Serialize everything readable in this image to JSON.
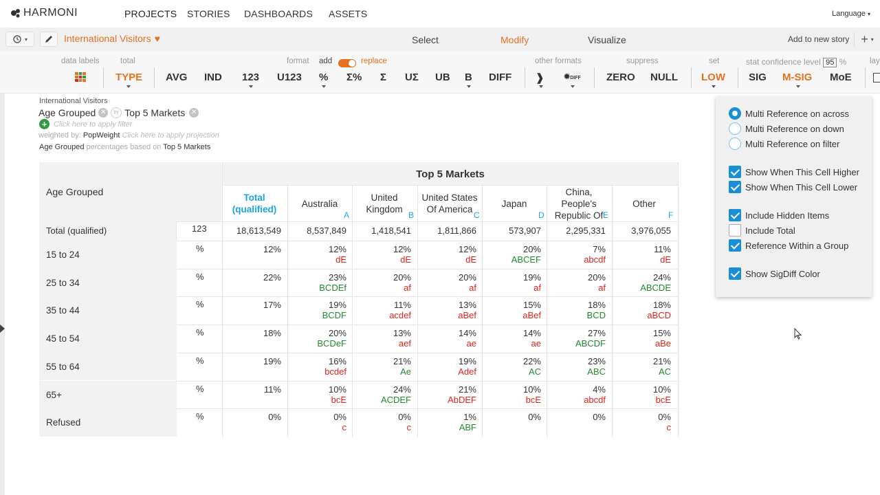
{
  "app": {
    "logo_text": "HARMONI",
    "language": "Language"
  },
  "nav": {
    "items": [
      {
        "label": "PROJECTS",
        "active": true
      },
      {
        "label": "STORIES"
      },
      {
        "label": "DASHBOARDS"
      },
      {
        "label": "ASSETS"
      }
    ]
  },
  "doc": {
    "title": "International Visitors"
  },
  "modes": {
    "select": "Select",
    "modify": "Modify",
    "visualize": "Visualize",
    "active": "Modify"
  },
  "toolbar2": {
    "add_story": "Add to new story"
  },
  "ribbon": {
    "labels": {
      "data_labels": "data labels",
      "total": "total",
      "format": "format",
      "add": "add",
      "replace": "replace",
      "other_formats": "other formats",
      "suppress": "suppress",
      "set": "set",
      "stat_conf": "stat confidence level",
      "conf_value": "95",
      "pct": "%",
      "lay": "lay"
    },
    "buttons": {
      "type": "TYPE",
      "avg": "AVG",
      "ind": "IND",
      "n123": "123",
      "u123": "U123",
      "pct": "%",
      "spct": "Σ%",
      "sigma": "Σ",
      "usigma": "UΣ",
      "ub": "UB",
      "b": "B",
      "diff": "DIFF",
      "zero": "ZERO",
      "null": "NULL",
      "low": "LOW",
      "sig": "SIG",
      "msig": "M-SIG",
      "moe": "MoE"
    }
  },
  "filters": {
    "dataset": "International Visitors",
    "row_var": "Age Grouped",
    "col_var": "Top 5 Markets",
    "by_icon": "by",
    "apply_filter": "Click here to apply filter",
    "weighted_label": "weighted by:",
    "weight": "PopWeight",
    "apply_projection": "Click here to apply projection",
    "pct_based_row": "Age Grouped",
    "pct_based_text": "percentages based on",
    "pct_based_col": "Top 5 Markets"
  },
  "table": {
    "row_header": "Age Grouped",
    "banner": "Top 5 Markets",
    "columns": [
      {
        "label": "Total (qualified)",
        "letter": ""
      },
      {
        "label": "Australia",
        "letter": "A"
      },
      {
        "label": "United Kingdom",
        "letter": "B"
      },
      {
        "label": "United States Of America",
        "letter": "C"
      },
      {
        "label": "Japan",
        "letter": "D"
      },
      {
        "label": "China, People's Republic Of",
        "letter": "E"
      },
      {
        "label": "Other",
        "letter": "F"
      }
    ],
    "total_row": {
      "label": "Total (qualified)",
      "stat": "123",
      "values": [
        "18,613,549",
        "8,537,849",
        "1,418,541",
        "1,811,866",
        "573,907",
        "2,295,331",
        "3,976,055"
      ]
    },
    "rows": [
      {
        "label": "15 to 24",
        "stat": "%",
        "values": [
          "12%",
          "12%",
          "12%",
          "12%",
          "20%",
          "7%",
          "11%"
        ],
        "sigs": [
          "",
          "dE",
          "dE",
          "dE",
          "ABCEF",
          "abcdf",
          "dE"
        ],
        "sigcolors": [
          "",
          "red",
          "red",
          "red",
          "green",
          "red",
          "red"
        ]
      },
      {
        "label": "25 to 34",
        "stat": "%",
        "values": [
          "22%",
          "23%",
          "20%",
          "20%",
          "19%",
          "20%",
          "24%"
        ],
        "sigs": [
          "",
          "BCDEf",
          "af",
          "af",
          "af",
          "af",
          "ABCDE"
        ],
        "sigcolors": [
          "",
          "green",
          "red",
          "red",
          "red",
          "red",
          "green"
        ]
      },
      {
        "label": "35 to 44",
        "stat": "%",
        "values": [
          "17%",
          "19%",
          "11%",
          "13%",
          "15%",
          "18%",
          "18%"
        ],
        "sigs": [
          "",
          "BCDF",
          "acdef",
          "aBef",
          "aBef",
          "BCD",
          "aBCD"
        ],
        "sigcolors": [
          "",
          "green",
          "red",
          "red",
          "red",
          "green",
          "red"
        ]
      },
      {
        "label": "45 to 54",
        "stat": "%",
        "values": [
          "18%",
          "20%",
          "13%",
          "14%",
          "14%",
          "27%",
          "15%"
        ],
        "sigs": [
          "",
          "BCDeF",
          "aef",
          "ae",
          "ae",
          "ABCDF",
          "aBe"
        ],
        "sigcolors": [
          "",
          "green",
          "red",
          "red",
          "red",
          "green",
          "red"
        ]
      },
      {
        "label": "55 to 64",
        "stat": "%",
        "values": [
          "19%",
          "16%",
          "21%",
          "19%",
          "22%",
          "23%",
          "21%"
        ],
        "sigs": [
          "",
          "bcdef",
          "Ae",
          "Adef",
          "AC",
          "ABC",
          "AC"
        ],
        "sigcolors": [
          "",
          "red",
          "green",
          "red",
          "green",
          "green",
          "green"
        ]
      },
      {
        "label": "65+",
        "stat": "%",
        "values": [
          "11%",
          "10%",
          "24%",
          "21%",
          "10%",
          "4%",
          "10%"
        ],
        "sigs": [
          "",
          "bcE",
          "ACDEF",
          "AbDEF",
          "bcE",
          "abcdf",
          "bcE"
        ],
        "sigcolors": [
          "",
          "red",
          "green",
          "red",
          "red",
          "red",
          "red"
        ]
      },
      {
        "label": "Refused",
        "stat": "%",
        "values": [
          "0%",
          "0%",
          "0%",
          "1%",
          "0%",
          "0%",
          "0%"
        ],
        "sigs": [
          "",
          "c",
          "c",
          "ABF",
          "",
          "",
          "c"
        ],
        "sigcolors": [
          "",
          "red",
          "red",
          "green",
          "",
          "",
          "red"
        ]
      }
    ]
  },
  "popup": {
    "radios": [
      {
        "label": "Multi Reference on across",
        "checked": true
      },
      {
        "label": "Multi Reference on down",
        "checked": false
      },
      {
        "label": "Multi Reference on filter",
        "checked": false
      }
    ],
    "checks1": [
      {
        "label": "Show When This Cell Higher",
        "checked": true
      },
      {
        "label": "Show When This Cell Lower",
        "checked": true
      }
    ],
    "checks2": [
      {
        "label": "Include Hidden Items",
        "checked": true
      },
      {
        "label": "Include Total",
        "checked": false
      },
      {
        "label": "Reference Within a Group",
        "checked": true
      }
    ],
    "checks3": [
      {
        "label": "Show SigDiff Color",
        "checked": true
      }
    ]
  },
  "colors": {
    "accent": "#e8711e",
    "blue": "#1a8fd6",
    "sig_red": "#e2231a",
    "sig_green": "#1f8a2e"
  }
}
